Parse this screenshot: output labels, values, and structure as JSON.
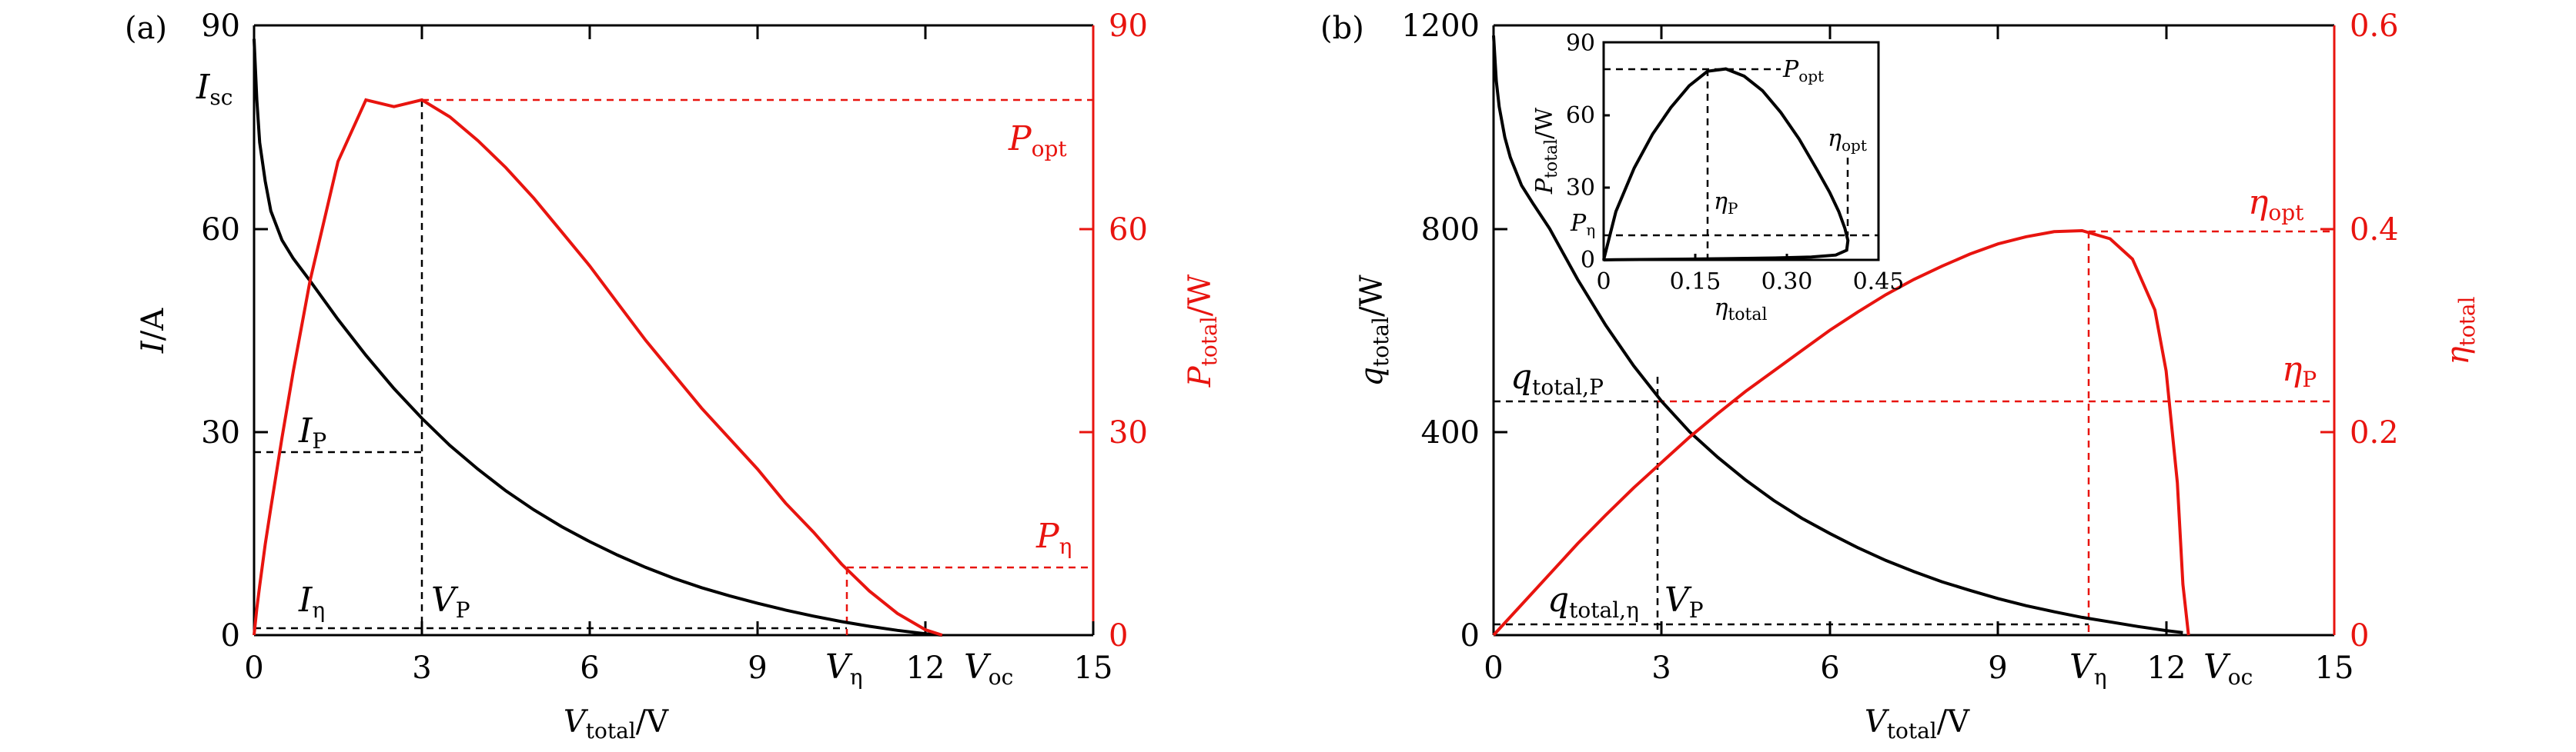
{
  "panels": [
    {
      "panel_label": "(a)",
      "x_tick_labels": [
        "0",
        "3",
        "6",
        "9",
        "12",
        "15"
      ],
      "y_left_tick_labels": [
        "0",
        "30",
        "60",
        "90"
      ],
      "y_right_tick_labels": [
        "0",
        "30",
        "60",
        "90"
      ],
      "x_label": {
        "main": "V",
        "sub": "total",
        "unit": "/V"
      },
      "y_left_label": {
        "main": "I",
        "sub": "",
        "unit": "/A"
      },
      "y_right_label": {
        "main": "P",
        "sub": "total",
        "unit": "/W"
      },
      "annotations": {
        "isc": {
          "main": "I",
          "sub": "sc"
        },
        "popt": {
          "main": "P",
          "sub": "opt"
        },
        "ip": {
          "main": "I",
          "sub": "P"
        },
        "ieta": {
          "main": "I",
          "sub": "η"
        },
        "vp": {
          "main": "V",
          "sub": "P"
        },
        "veta": {
          "main": "V",
          "sub": "η"
        },
        "peta": {
          "main": "P",
          "sub": "η"
        },
        "voc": {
          "main": "V",
          "sub": "oc"
        }
      }
    },
    {
      "panel_label": "(b)",
      "x_tick_labels": [
        "0",
        "3",
        "6",
        "9",
        "12",
        "15"
      ],
      "y_left_tick_labels": [
        "0",
        "400",
        "800",
        "1200"
      ],
      "y_right_tick_labels": [
        "0",
        "0.2",
        "0.4",
        "0.6"
      ],
      "x_label": {
        "main": "V",
        "sub": "total",
        "unit": "/V"
      },
      "y_left_label": {
        "main": "q",
        "sub": "total",
        "unit": "/W"
      },
      "y_right_label": {
        "main": "η",
        "sub": "total",
        "unit": ""
      },
      "annotations": {
        "etaopt": {
          "main": "η",
          "sub": "opt"
        },
        "etap": {
          "main": "η",
          "sub": "P"
        },
        "qtp": {
          "main": "q",
          "sub": "total,P"
        },
        "qteta": {
          "main": "q",
          "sub": "total,η"
        },
        "vp": {
          "main": "V",
          "sub": "P"
        },
        "veta": {
          "main": "V",
          "sub": "η"
        },
        "voc": {
          "main": "V",
          "sub": "oc"
        }
      },
      "inset": {
        "x_tick_labels": [
          "0",
          "0.15",
          "0.30",
          "0.45"
        ],
        "y_tick_labels": [
          "0",
          "30",
          "60",
          "90"
        ],
        "x_label": {
          "main": "η",
          "sub": "total"
        },
        "y_label": {
          "main": "P",
          "sub": "total",
          "unit": "/W"
        },
        "annotations": {
          "popt": {
            "main": "P",
            "sub": "opt"
          },
          "etaopt": {
            "main": "η",
            "sub": "opt"
          },
          "etap": {
            "main": "η",
            "sub": "P"
          },
          "peta": {
            "main": "P",
            "sub": "η"
          }
        }
      }
    }
  ],
  "chart_data": [
    {
      "type": "line",
      "x_axis": {
        "range": [
          0,
          15
        ]
      },
      "y_left_axis": {
        "range": [
          0,
          90
        ]
      },
      "y_right_axis": {
        "range": [
          0,
          90
        ]
      },
      "series": [
        {
          "axis": "left",
          "color": "#000000",
          "x": [
            0,
            0.05,
            0.1,
            0.2,
            0.3,
            0.5,
            0.7,
            1,
            1.5,
            2,
            2.5,
            3,
            3.5,
            4,
            4.5,
            5,
            5.5,
            6,
            6.5,
            7,
            7.5,
            8,
            8.5,
            9,
            9.5,
            10,
            10.5,
            11,
            11.5,
            12,
            12.3
          ],
          "y": [
            88,
            79,
            72.7,
            67,
            62.6,
            58.3,
            55.6,
            52.3,
            46.6,
            41.3,
            36.4,
            32,
            28,
            24.5,
            21.3,
            18.5,
            16,
            13.8,
            11.8,
            10,
            8.4,
            7,
            5.8,
            4.7,
            3.7,
            2.8,
            2,
            1.3,
            0.7,
            0.2,
            0
          ]
        },
        {
          "axis": "right",
          "color": "#e8140f",
          "x": [
            0,
            0.05,
            0.1,
            0.2,
            0.3,
            0.5,
            0.7,
            1,
            1.5,
            2,
            2.5,
            3,
            3.5,
            4,
            4.5,
            5,
            5.5,
            6,
            6.5,
            7,
            7.5,
            8,
            8.5,
            9,
            9.5,
            10,
            10.5,
            11,
            11.5,
            12,
            12.3
          ],
          "y": [
            0,
            3.95,
            7.27,
            13.4,
            18.78,
            29.15,
            38.92,
            52.3,
            69.9,
            79,
            78,
            79,
            76.5,
            73,
            69,
            64.5,
            59.5,
            54.5,
            49,
            43.5,
            38.5,
            33.5,
            29,
            24.5,
            19.5,
            15.2,
            10.5,
            6.5,
            3.2,
            0.8,
            0
          ]
        }
      ],
      "reference_points": {
        "v_p": 3,
        "i_p": 27,
        "p_opt": 80,
        "v_eta": 10.6,
        "i_eta": 1,
        "p_eta": 10,
        "v_oc": 12.3,
        "i_sc": 88
      }
    },
    {
      "type": "line",
      "x_axis": {
        "range": [
          0,
          15
        ]
      },
      "y_left_axis": {
        "range": [
          0,
          1200
        ]
      },
      "y_right_axis": {
        "range": [
          0,
          0.6
        ]
      },
      "series": [
        {
          "axis": "left",
          "color": "#000000",
          "x": [
            0,
            0.05,
            0.1,
            0.2,
            0.3,
            0.5,
            0.7,
            1,
            1.5,
            2,
            2.5,
            3,
            3.5,
            4,
            4.5,
            5,
            5.5,
            6,
            6.5,
            7,
            7.5,
            8,
            8.5,
            9,
            9.5,
            10,
            10.5,
            11,
            11.5,
            12,
            12.3
          ],
          "y": [
            1180,
            1090,
            1040,
            980,
            940,
            885,
            850,
            800,
            700,
            610,
            530,
            460,
            400,
            350,
            305,
            265,
            230,
            200,
            172,
            147,
            125,
            105,
            88,
            72,
            58,
            46,
            35,
            26,
            17,
            9,
            5
          ]
        },
        {
          "axis": "right",
          "color": "#e8140f",
          "x": [
            0,
            0.5,
            1,
            1.5,
            2,
            2.5,
            3,
            3.5,
            4,
            4.5,
            5,
            5.5,
            6,
            6.5,
            7,
            7.5,
            8,
            8.5,
            9,
            9.5,
            10,
            10.5,
            11,
            11.4,
            11.8,
            12,
            12.2,
            12.3,
            12.4
          ],
          "y": [
            0,
            0.03,
            0.06,
            0.09,
            0.118,
            0.145,
            0.17,
            0.195,
            0.218,
            0.24,
            0.26,
            0.28,
            0.3,
            0.318,
            0.335,
            0.35,
            0.363,
            0.375,
            0.385,
            0.392,
            0.397,
            0.398,
            0.39,
            0.37,
            0.32,
            0.26,
            0.15,
            0.05,
            0
          ]
        }
      ],
      "reference_points": {
        "v_p": 2.9,
        "q_total_p": 460,
        "eta_p": 0.23,
        "v_eta": 10.6,
        "q_total_eta": 22,
        "eta_opt": 0.398,
        "v_oc": 12.4
      }
    },
    {
      "type": "line",
      "inset_of": "(b)",
      "x_axis": {
        "range": [
          0,
          0.45
        ]
      },
      "y_axis": {
        "range": [
          0,
          90
        ]
      },
      "series": [
        {
          "color": "#000000",
          "x": [
            0,
            0.02,
            0.05,
            0.08,
            0.11,
            0.14,
            0.17,
            0.2,
            0.23,
            0.26,
            0.29,
            0.32,
            0.35,
            0.37,
            0.385,
            0.395,
            0.4,
            0.398,
            0.38,
            0.34,
            0.28,
            0.2,
            0.12,
            0.06,
            0.02,
            0
          ],
          "y": [
            0,
            20,
            38,
            52,
            63,
            72,
            78,
            79,
            76,
            70,
            61,
            50,
            37,
            28,
            20,
            13,
            8,
            4,
            2,
            1.2,
            0.8,
            0.5,
            0.3,
            0.15,
            0.05,
            0
          ]
        }
      ],
      "reference_points": {
        "eta_p": 0.17,
        "p_opt": 79,
        "eta_opt": 0.398,
        "p_eta": 10
      }
    }
  ]
}
